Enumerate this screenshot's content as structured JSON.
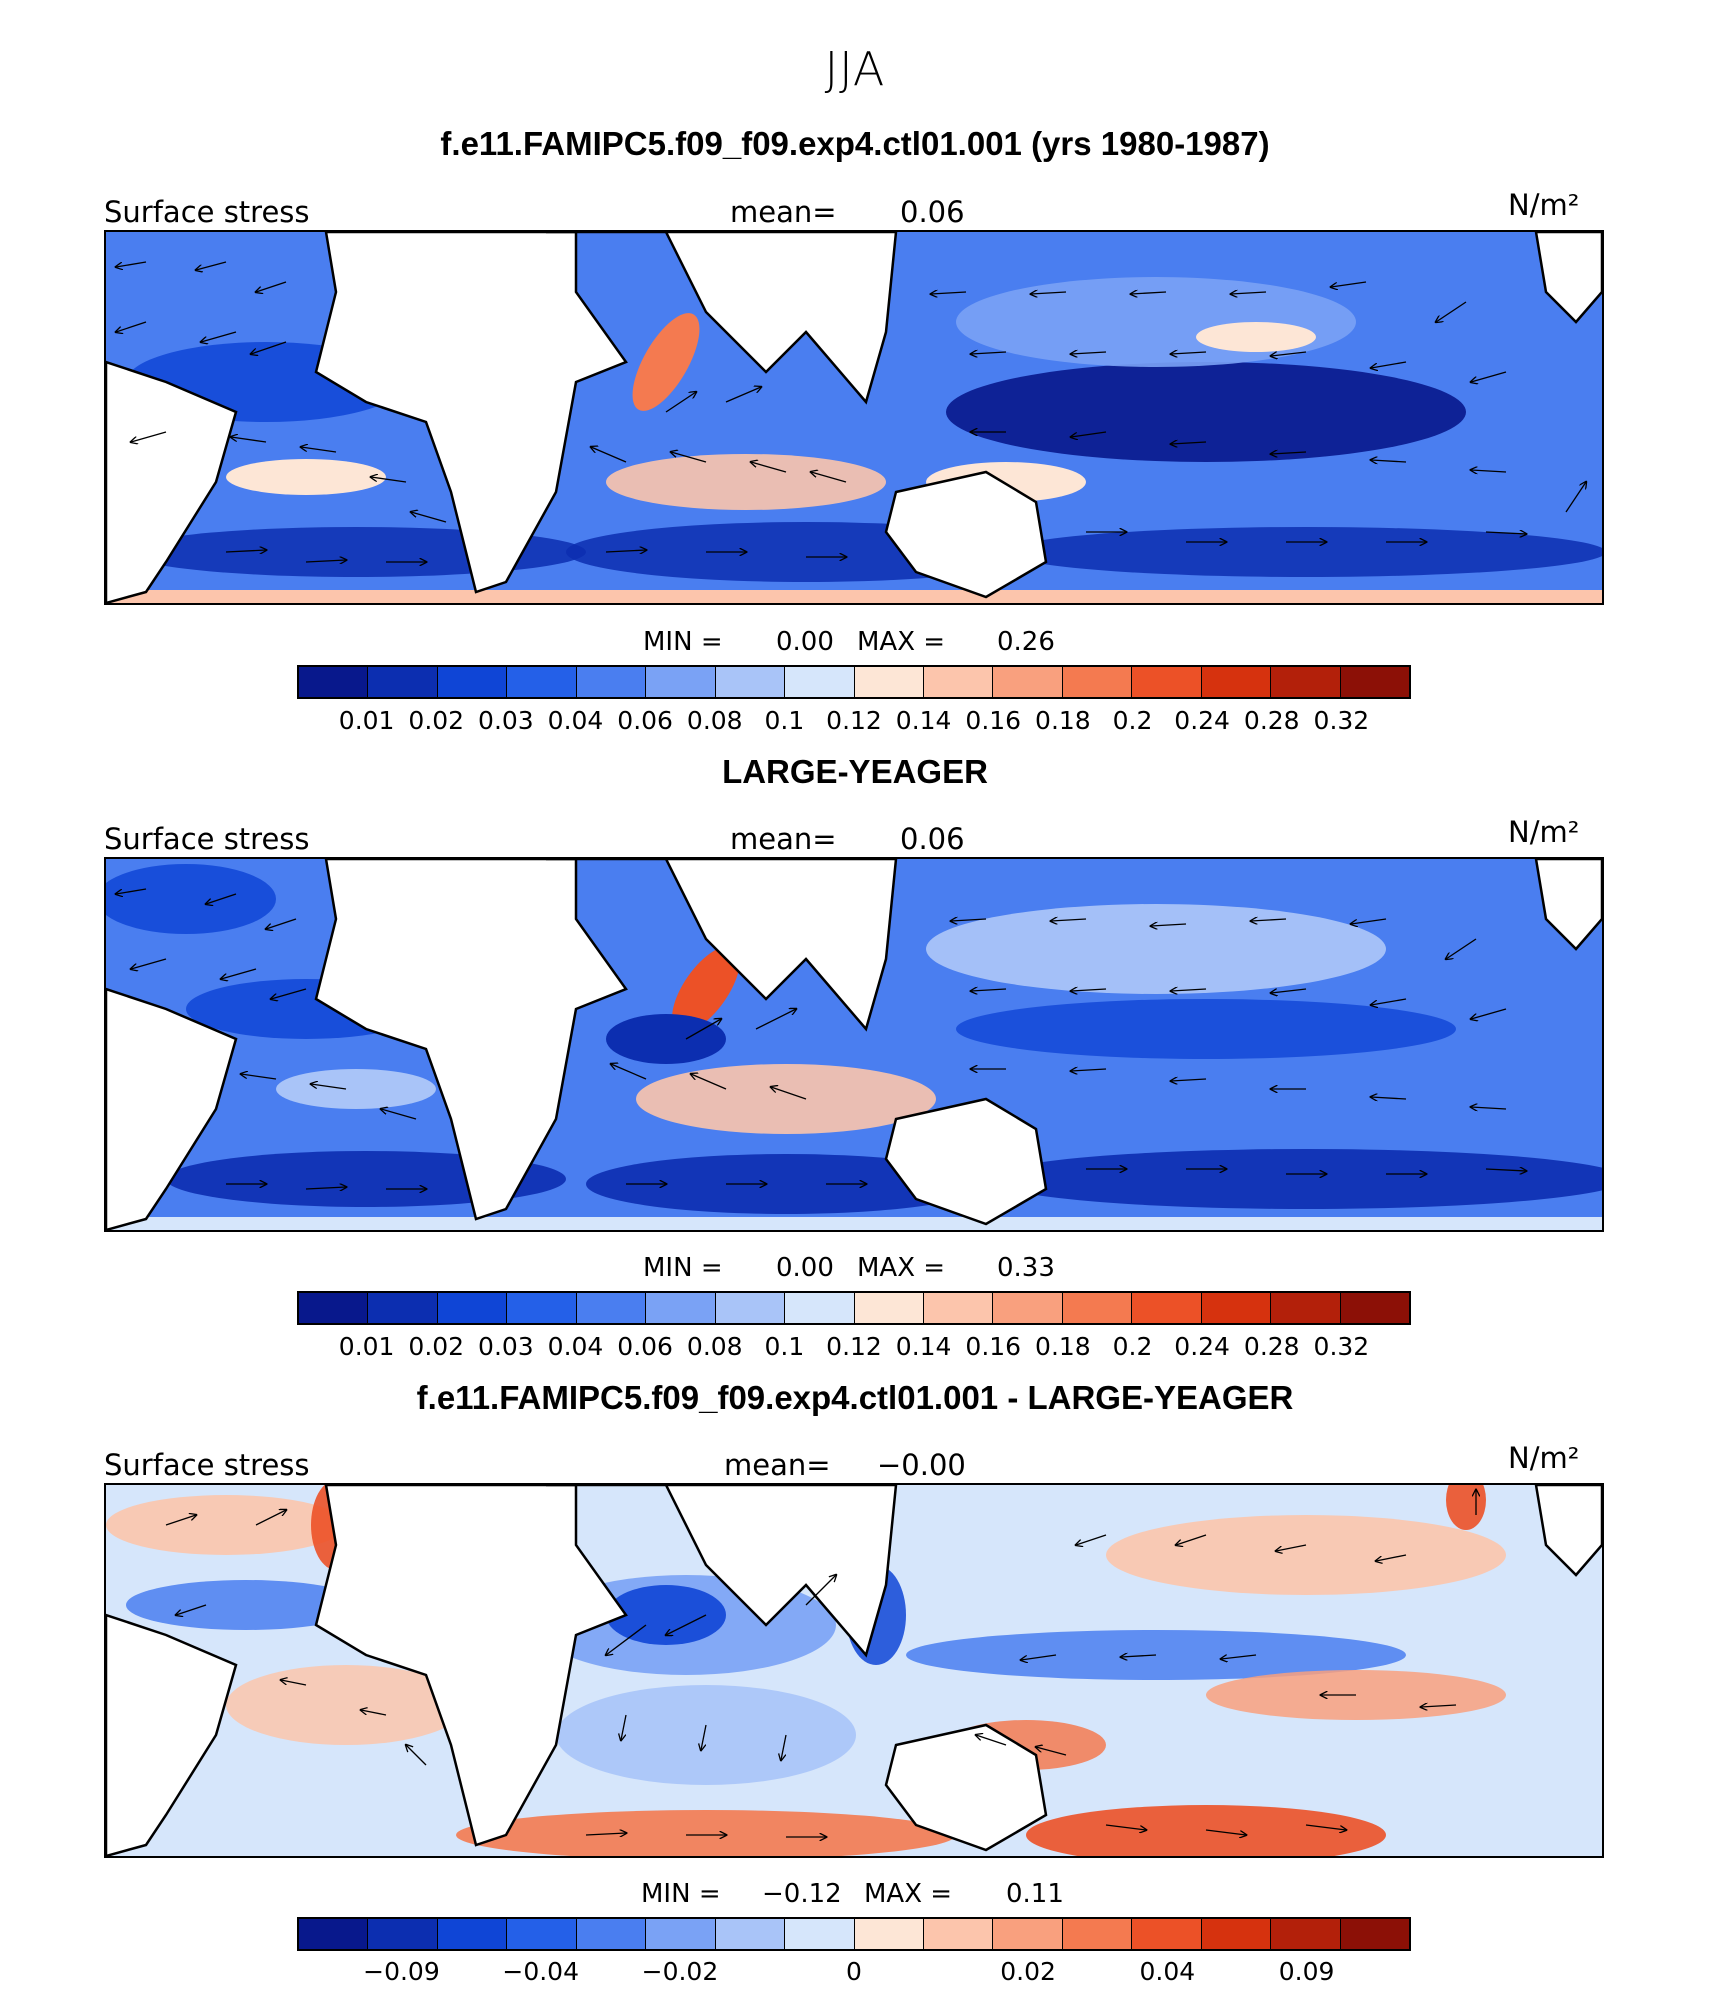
{
  "figure": {
    "title": "JJA",
    "units": "N/m²",
    "colormap": [
      "#08188c",
      "#0c2eb0",
      "#0f45d6",
      "#2460e8",
      "#4a7ef0",
      "#7aa2f5",
      "#a9c4f8",
      "#d6e6fb",
      "#fde6d6",
      "#fcc5ac",
      "#f9a07e",
      "#f47a50",
      "#ec5127",
      "#d6320e",
      "#b3200a",
      "#8c1006"
    ]
  },
  "panels": [
    {
      "title": "f.e11.FAMIPC5.f09_f09.exp4.ctl01.001 (yrs 1980-1987)",
      "variable": "Surface stress",
      "mean_label": "mean=",
      "mean_value": "0.06",
      "units": "N/m²",
      "min_label": "MIN =",
      "min_value": "0.00",
      "max_label": "MAX =",
      "max_value": "0.26",
      "ticks": [
        "0.01",
        "0.02",
        "0.03",
        "0.04",
        "0.06",
        "0.08",
        "0.1",
        "0.12",
        "0.14",
        "0.16",
        "0.18",
        "0.2",
        "0.24",
        "0.28",
        "0.32"
      ]
    },
    {
      "title": "LARGE-YEAGER",
      "variable": "Surface stress",
      "mean_label": "mean=",
      "mean_value": "0.06",
      "units": "N/m²",
      "min_label": "MIN =",
      "min_value": "0.00",
      "max_label": "MAX =",
      "max_value": "0.33",
      "ticks": [
        "0.01",
        "0.02",
        "0.03",
        "0.04",
        "0.06",
        "0.08",
        "0.1",
        "0.12",
        "0.14",
        "0.16",
        "0.18",
        "0.2",
        "0.24",
        "0.28",
        "0.32"
      ]
    },
    {
      "title": "f.e11.FAMIPC5.f09_f09.exp4.ctl01.001 - LARGE-YEAGER",
      "variable": "Surface stress",
      "mean_label": "mean=",
      "mean_value": "−0.00",
      "units": "N/m²",
      "min_label": "MIN =",
      "min_value": "−0.12",
      "max_label": "MAX =",
      "max_value": "0.11",
      "ticks": [
        "−0.09",
        "−0.04",
        "−0.02",
        "0",
        "0.02",
        "0.04",
        "0.09"
      ]
    }
  ]
}
